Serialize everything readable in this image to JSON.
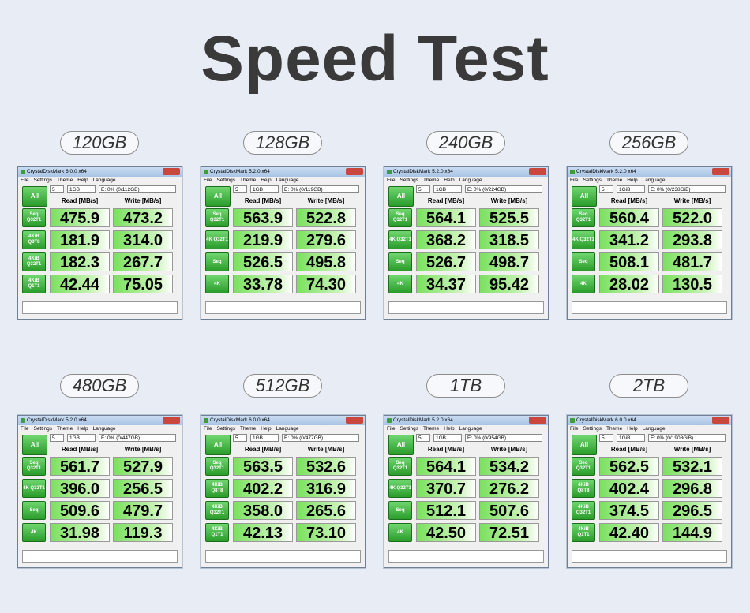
{
  "title": "Speed Test",
  "panels": [
    {
      "capacity": "120GB",
      "window_title": "CrystalDiskMark 6.0.0 x64",
      "menu": [
        "File",
        "Settings",
        "Theme",
        "Help",
        "Language"
      ],
      "all_button": "All",
      "count": "5",
      "size": "1GB",
      "drive": "E: 0% (0/112GB)",
      "headers": [
        "Read [MB/s]",
        "Write [MB/s]"
      ],
      "rows": [
        {
          "label": "Seq Q32T1",
          "read": "475.9",
          "write": "473.2"
        },
        {
          "label": "4KiB Q8T8",
          "read": "181.9",
          "write": "314.0"
        },
        {
          "label": "4KiB Q32T1",
          "read": "182.3",
          "write": "267.7"
        },
        {
          "label": "4KiB Q1T1",
          "read": "42.44",
          "write": "75.05"
        }
      ]
    },
    {
      "capacity": "128GB",
      "window_title": "CrystalDiskMark 5.2.0 x64",
      "menu": [
        "File",
        "Settings",
        "Theme",
        "Help",
        "Language"
      ],
      "all_button": "All",
      "count": "5",
      "size": "1GB",
      "drive": "E: 0% (0/119GB)",
      "headers": [
        "Read [MB/s]",
        "Write [MB/s]"
      ],
      "rows": [
        {
          "label": "Seq Q32T1",
          "read": "563.9",
          "write": "522.8"
        },
        {
          "label": "4K Q32T1",
          "read": "219.9",
          "write": "279.6"
        },
        {
          "label": "Seq",
          "read": "526.5",
          "write": "495.8"
        },
        {
          "label": "4K",
          "read": "33.78",
          "write": "74.30"
        }
      ]
    },
    {
      "capacity": "240GB",
      "window_title": "CrystalDiskMark 5.2.0 x64",
      "menu": [
        "File",
        "Settings",
        "Theme",
        "Help",
        "Language"
      ],
      "all_button": "All",
      "count": "5",
      "size": "1GB",
      "drive": "E: 0% (0/224GB)",
      "headers": [
        "Read [MB/s]",
        "Write [MB/s]"
      ],
      "rows": [
        {
          "label": "Seq Q32T1",
          "read": "564.1",
          "write": "525.5"
        },
        {
          "label": "4K Q32T1",
          "read": "368.2",
          "write": "318.5"
        },
        {
          "label": "Seq",
          "read": "526.7",
          "write": "498.7"
        },
        {
          "label": "4K",
          "read": "34.37",
          "write": "95.42"
        }
      ]
    },
    {
      "capacity": "256GB",
      "window_title": "CrystalDiskMark 5.2.0 x64",
      "menu": [
        "File",
        "Settings",
        "Theme",
        "Help",
        "Language"
      ],
      "all_button": "All",
      "count": "5",
      "size": "1GiB",
      "drive": "E: 0% (0/238GiB)",
      "headers": [
        "Read [MB/s]",
        "Write [MB/s]"
      ],
      "rows": [
        {
          "label": "Seq Q32T1",
          "read": "560.4",
          "write": "522.0"
        },
        {
          "label": "4K Q32T1",
          "read": "341.2",
          "write": "293.8"
        },
        {
          "label": "Seq",
          "read": "508.1",
          "write": "481.7"
        },
        {
          "label": "4K",
          "read": "28.02",
          "write": "130.5"
        }
      ]
    },
    {
      "capacity": "480GB",
      "window_title": "CrystalDiskMark 5.2.0 x64",
      "menu": [
        "File",
        "Settings",
        "Theme",
        "Help",
        "Language"
      ],
      "all_button": "All",
      "count": "5",
      "size": "1GB",
      "drive": "E: 0% (0/447GB)",
      "headers": [
        "Read [MB/s]",
        "Write [MB/s]"
      ],
      "rows": [
        {
          "label": "Seq Q32T1",
          "read": "561.7",
          "write": "527.9"
        },
        {
          "label": "4K Q32T1",
          "read": "396.0",
          "write": "256.5"
        },
        {
          "label": "Seq",
          "read": "509.6",
          "write": "479.7"
        },
        {
          "label": "4K",
          "read": "31.98",
          "write": "119.3"
        }
      ]
    },
    {
      "capacity": "512GB",
      "window_title": "CrystalDiskMark 6.0.0 x64",
      "menu": [
        "File",
        "Settings",
        "Theme",
        "Help",
        "Language"
      ],
      "all_button": "All",
      "count": "5",
      "size": "1GB",
      "drive": "E: 0% (0/477GB)",
      "headers": [
        "Read [MB/s]",
        "Write [MB/s]"
      ],
      "rows": [
        {
          "label": "Seq Q32T1",
          "read": "563.5",
          "write": "532.6"
        },
        {
          "label": "4KiB Q8T8",
          "read": "402.2",
          "write": "316.9"
        },
        {
          "label": "4KiB Q32T1",
          "read": "358.0",
          "write": "265.6"
        },
        {
          "label": "4KiB Q1T1",
          "read": "42.13",
          "write": "73.10"
        }
      ]
    },
    {
      "capacity": "1TB",
      "window_title": "CrystalDiskMark 5.2.0 x64",
      "menu": [
        "File",
        "Settings",
        "Theme",
        "Help",
        "Language"
      ],
      "all_button": "All",
      "count": "5",
      "size": "1GB",
      "drive": "E: 0% (0/954GB)",
      "headers": [
        "Read [MB/s]",
        "Write [MB/s]"
      ],
      "rows": [
        {
          "label": "Seq Q32T1",
          "read": "564.1",
          "write": "534.2"
        },
        {
          "label": "4K Q32T1",
          "read": "370.7",
          "write": "276.2"
        },
        {
          "label": "Seq",
          "read": "512.1",
          "write": "507.6"
        },
        {
          "label": "4K",
          "read": "42.50",
          "write": "72.51"
        }
      ]
    },
    {
      "capacity": "2TB",
      "window_title": "CrystalDiskMark 6.0.0 x64",
      "menu": [
        "File",
        "Settings",
        "Theme",
        "Help",
        "Language"
      ],
      "all_button": "All",
      "count": "5",
      "size": "1GiB",
      "drive": "E: 0% (0/1908GiB)",
      "headers": [
        "Read [MB/s]",
        "Write [MB/s]"
      ],
      "rows": [
        {
          "label": "Seq Q32T1",
          "read": "562.5",
          "write": "532.1"
        },
        {
          "label": "4KiB Q8T8",
          "read": "402.4",
          "write": "296.8"
        },
        {
          "label": "4KiB Q32T1",
          "read": "374.5",
          "write": "296.5"
        },
        {
          "label": "4KiB Q1T1",
          "read": "42.40",
          "write": "144.9"
        }
      ]
    }
  ]
}
